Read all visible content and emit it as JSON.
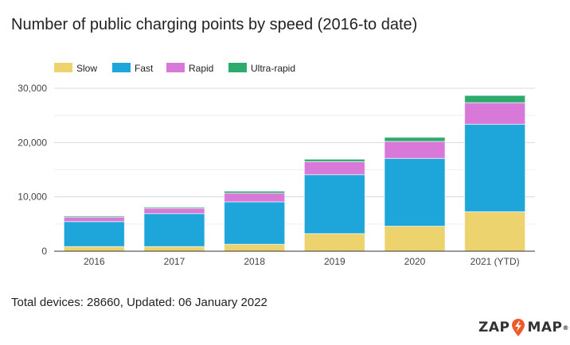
{
  "chart_data": {
    "type": "bar",
    "stacked": true,
    "title": "Number of public charging points by speed (2016-to date)",
    "categories": [
      "2016",
      "2017",
      "2018",
      "2019",
      "2020",
      "2021 (YTD)"
    ],
    "series": [
      {
        "name": "Slow",
        "color": "#edd36e",
        "values": [
          850,
          850,
          1280,
          3240,
          4610,
          7270
        ]
      },
      {
        "name": "Fast",
        "color": "#1ea5da",
        "values": [
          4600,
          6070,
          7800,
          10850,
          12470,
          16100
        ]
      },
      {
        "name": "Rapid",
        "color": "#d878d8",
        "values": [
          830,
          980,
          1620,
          2400,
          3140,
          3970
        ]
      },
      {
        "name": "Ultra-rapid",
        "color": "#2dab6c",
        "values": [
          200,
          200,
          350,
          440,
          740,
          1320
        ]
      }
    ],
    "ylim": [
      0,
      30000
    ],
    "yticks": [
      0,
      10000,
      20000,
      30000
    ],
    "ytick_labels": [
      "0",
      "10,000",
      "20,000",
      "30,000"
    ],
    "grid": true,
    "legend": "top-left"
  },
  "footer": "Total devices: 28660, Updated: 06 January 2022",
  "logo": {
    "left": "ZAP",
    "right": "MAP",
    "mark": "®",
    "accent": "#f05a28"
  }
}
